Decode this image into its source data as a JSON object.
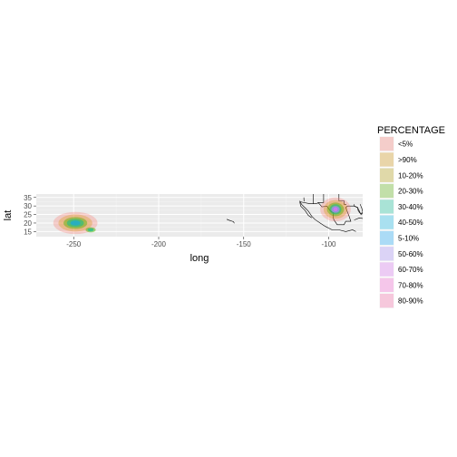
{
  "chart_data": {
    "type": "heatmap",
    "subtype": "density-contour-map",
    "title": "",
    "xlabel": "long",
    "ylabel": "lat",
    "xlim": [
      -272,
      -80
    ],
    "ylim": [
      12,
      37
    ],
    "x_ticks": [
      -250,
      -200,
      -150,
      -100
    ],
    "x_tick_labels": [
      "-250",
      "-200",
      "-150",
      "-100"
    ],
    "y_ticks": [
      15,
      20,
      25,
      30,
      35
    ],
    "y_tick_labels": [
      "15",
      "20",
      "25",
      "30",
      "35"
    ],
    "grid": true,
    "legend": {
      "title": "PERCENTAGE",
      "position": "right",
      "entries": [
        {
          "label": "<5%",
          "color": "#F8766D"
        },
        {
          "label": ">90%",
          "color": "#D39200"
        },
        {
          "label": "10-20%",
          "color": "#B79F00"
        },
        {
          "label": "20-30%",
          "color": "#53B400"
        },
        {
          "label": "30-40%",
          "color": "#00C094"
        },
        {
          "label": "40-50%",
          "color": "#00B6EB"
        },
        {
          "label": "5-10%",
          "color": "#06A4FF"
        },
        {
          "label": "50-60%",
          "color": "#A58AFF"
        },
        {
          "label": "60-70%",
          "color": "#DF70F8"
        },
        {
          "label": "70-80%",
          "color": "#FB61D7"
        },
        {
          "label": "80-90%",
          "color": "#FF66A8"
        }
      ]
    },
    "density_clusters": [
      {
        "center": [
          -249,
          20
        ],
        "layers": [
          {
            "color": "#F8766D",
            "opacity": 0.3,
            "rx": 13,
            "ry": 6.5
          },
          {
            "color": "#D39200",
            "opacity": 0.3,
            "rx": 10,
            "ry": 5
          },
          {
            "color": "#53B400",
            "opacity": 0.45,
            "rx": 7,
            "ry": 3.5
          },
          {
            "color": "#00C094",
            "opacity": 0.5,
            "rx": 5,
            "ry": 2.5
          },
          {
            "color": "#06A4FF",
            "opacity": 0.55,
            "rx": 3,
            "ry": 1.5
          }
        ]
      },
      {
        "center": [
          -240,
          16
        ],
        "layers": [
          {
            "color": "#53B400",
            "opacity": 0.5,
            "rx": 3,
            "ry": 1.5
          },
          {
            "color": "#00C094",
            "opacity": 0.6,
            "rx": 1.8,
            "ry": 1
          }
        ]
      },
      {
        "center": [
          -96,
          28
        ],
        "layers": [
          {
            "color": "#F8766D",
            "opacity": 0.3,
            "rx": 9,
            "ry": 7
          },
          {
            "color": "#D39200",
            "opacity": 0.3,
            "rx": 7,
            "ry": 5.5
          },
          {
            "color": "#53B400",
            "opacity": 0.45,
            "rx": 5,
            "ry": 4
          },
          {
            "color": "#00C094",
            "opacity": 0.5,
            "rx": 3.5,
            "ry": 3
          },
          {
            "color": "#A58AFF",
            "opacity": 0.7,
            "rx": 2.5,
            "ry": 2
          },
          {
            "color": "#DF70F8",
            "opacity": 0.8,
            "rx": 1.3,
            "ry": 1.2
          }
        ]
      }
    ],
    "basemap_outlines": [
      {
        "name": "hawaii",
        "points": [
          [
            -160,
            22.2
          ],
          [
            -158,
            21.4
          ],
          [
            -157,
            21.1
          ],
          [
            -156,
            20.8
          ],
          [
            -155.5,
            19.8
          ]
        ]
      },
      {
        "name": "north-america-coast",
        "points": [
          [
            -117,
            33
          ],
          [
            -116,
            31
          ],
          [
            -114,
            29
          ],
          [
            -112,
            27
          ],
          [
            -110,
            24
          ],
          [
            -108,
            22
          ],
          [
            -105,
            20
          ],
          [
            -102,
            18
          ],
          [
            -98,
            16
          ],
          [
            -94,
            16
          ],
          [
            -90,
            15
          ],
          [
            -86,
            16
          ],
          [
            -84,
            15
          ]
        ]
      },
      {
        "name": "gulf-coast",
        "points": [
          [
            -97,
            26
          ],
          [
            -97.5,
            24
          ],
          [
            -97,
            22
          ],
          [
            -95,
            19
          ],
          [
            -91,
            19
          ],
          [
            -90,
            21
          ],
          [
            -87,
            21
          ],
          [
            -88,
            24
          ],
          [
            -90,
            29
          ],
          [
            -89,
            30
          ],
          [
            -85,
            30
          ],
          [
            -83,
            29
          ],
          [
            -82,
            27
          ],
          [
            -81,
            25
          ],
          [
            -80.5,
            26
          ]
        ]
      },
      {
        "name": "us-mexico-border",
        "points": [
          [
            -117,
            32.5
          ],
          [
            -111,
            31.3
          ],
          [
            -108,
            31.3
          ],
          [
            -106,
            31.8
          ],
          [
            -104,
            29.5
          ],
          [
            -101,
            29.8
          ],
          [
            -99,
            27
          ],
          [
            -97,
            26
          ]
        ]
      },
      {
        "name": "state-lines-1",
        "points": [
          [
            -109,
            37
          ],
          [
            -109,
            31.3
          ]
        ]
      },
      {
        "name": "state-lines-2",
        "points": [
          [
            -103,
            37
          ],
          [
            -103,
            32
          ],
          [
            -106.5,
            32
          ]
        ]
      },
      {
        "name": "state-lines-3",
        "points": [
          [
            -94,
            37
          ],
          [
            -94,
            33
          ],
          [
            -91,
            33
          ],
          [
            -91,
            31
          ],
          [
            -89.6,
            31
          ]
        ]
      },
      {
        "name": "state-lines-4",
        "points": [
          [
            -114.6,
            35
          ],
          [
            -114.5,
            32.7
          ]
        ]
      },
      {
        "name": "baja",
        "points": [
          [
            -117,
            32.5
          ],
          [
            -116.5,
            30
          ],
          [
            -114,
            27.5
          ],
          [
            -112,
            24.5
          ],
          [
            -110,
            23
          ]
        ]
      },
      {
        "name": "florida",
        "points": [
          [
            -85,
            31
          ],
          [
            -85,
            30
          ],
          [
            -83,
            29.2
          ],
          [
            -82.7,
            27.5
          ],
          [
            -81.8,
            26
          ],
          [
            -80.5,
            25.2
          ],
          [
            -80,
            26.5
          ],
          [
            -80.5,
            28.5
          ],
          [
            -81.3,
            30.5
          ],
          [
            -81.5,
            31
          ]
        ]
      },
      {
        "name": "cuba",
        "points": [
          [
            -85,
            21.8
          ],
          [
            -82,
            23
          ],
          [
            -79,
            22.5
          ],
          [
            -76,
            21
          ],
          [
            -74.5,
            20
          ]
        ]
      }
    ]
  }
}
